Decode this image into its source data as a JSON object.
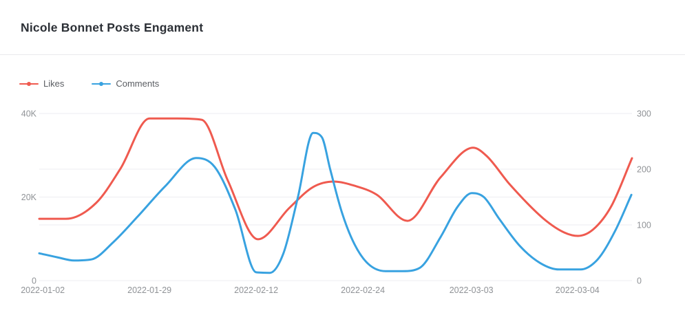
{
  "header": {
    "title": "Nicole Bonnet Posts Engament"
  },
  "chart_data": {
    "type": "line",
    "title": "Nicole Bonnet Posts Engament",
    "smooth": true,
    "show_symbols": false,
    "legend": {
      "position": "top-left"
    },
    "grid_color": "#ededf0",
    "x_axis": {
      "type": "category",
      "ticks": [
        {
          "label": "2022-01-02",
          "pos": 0.006
        },
        {
          "label": "2022-01-29",
          "pos": 0.186
        },
        {
          "label": "2022-02-12",
          "pos": 0.366
        },
        {
          "label": "2022-02-24",
          "pos": 0.546
        },
        {
          "label": "2022-03-03",
          "pos": 0.729
        },
        {
          "label": "2022-03-04",
          "pos": 0.908
        }
      ]
    },
    "y_axis_left": {
      "min": 0,
      "max": 40000,
      "tick_labels": [
        "0",
        "20K",
        "40K"
      ]
    },
    "y_axis_right": {
      "min": 0,
      "max": 300,
      "tick_labels": [
        "0",
        "100",
        "200",
        "300"
      ]
    },
    "series": [
      {
        "name": "Likes",
        "color": "#ef5a4f",
        "axis": "left",
        "points": [
          [
            0.0,
            14800
          ],
          [
            0.045,
            14800
          ],
          [
            0.096,
            18600
          ],
          [
            0.137,
            26800
          ],
          [
            0.186,
            38800
          ],
          [
            0.232,
            38800
          ],
          [
            0.274,
            38500
          ],
          [
            0.318,
            24000
          ],
          [
            0.369,
            9900
          ],
          [
            0.422,
            17400
          ],
          [
            0.462,
            22400
          ],
          [
            0.497,
            23700
          ],
          [
            0.532,
            22700
          ],
          [
            0.569,
            20600
          ],
          [
            0.621,
            14300
          ],
          [
            0.677,
            24700
          ],
          [
            0.732,
            31800
          ],
          [
            0.755,
            29800
          ],
          [
            0.794,
            23000
          ],
          [
            0.851,
            14800
          ],
          [
            0.886,
            11500
          ],
          [
            0.909,
            10700
          ],
          [
            0.935,
            12300
          ],
          [
            0.965,
            17800
          ],
          [
            1.0,
            29300
          ]
        ]
      },
      {
        "name": "Comments",
        "color": "#38a2e0",
        "axis": "right",
        "points": [
          [
            0.0,
            49
          ],
          [
            0.03,
            42
          ],
          [
            0.059,
            36
          ],
          [
            0.088,
            38
          ],
          [
            0.125,
            69
          ],
          [
            0.166,
            115
          ],
          [
            0.213,
            170
          ],
          [
            0.265,
            220
          ],
          [
            0.296,
            204
          ],
          [
            0.331,
            127
          ],
          [
            0.366,
            15
          ],
          [
            0.389,
            14
          ],
          [
            0.412,
            49
          ],
          [
            0.436,
            148
          ],
          [
            0.462,
            265
          ],
          [
            0.477,
            257
          ],
          [
            0.491,
            199
          ],
          [
            0.511,
            121
          ],
          [
            0.532,
            65
          ],
          [
            0.555,
            30
          ],
          [
            0.584,
            17
          ],
          [
            0.613,
            17
          ],
          [
            0.642,
            23
          ],
          [
            0.677,
            78
          ],
          [
            0.706,
            133
          ],
          [
            0.73,
            157
          ],
          [
            0.75,
            150
          ],
          [
            0.776,
            111
          ],
          [
            0.811,
            62
          ],
          [
            0.846,
            31
          ],
          [
            0.877,
            20
          ],
          [
            0.913,
            20
          ],
          [
            0.942,
            38
          ],
          [
            0.971,
            88
          ],
          [
            0.999,
            154
          ]
        ]
      }
    ]
  }
}
